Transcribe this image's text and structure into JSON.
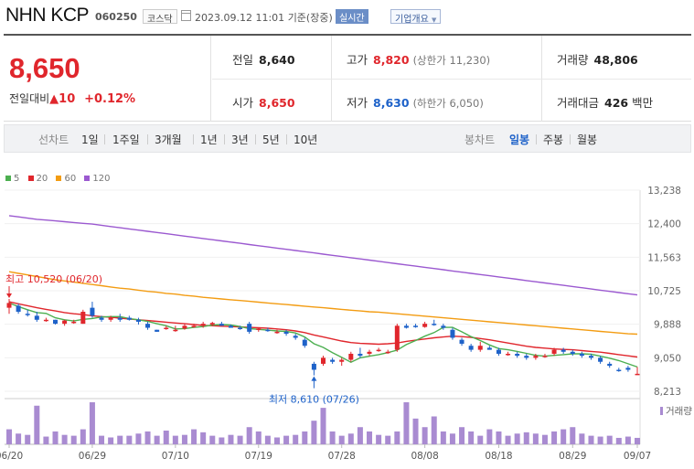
{
  "header": {
    "title": "NHN KCP",
    "code": "060250",
    "market": "코스닥",
    "timestamp": "2023.09.12 11:01",
    "basis": "기준(장중)",
    "realtime": "실시간",
    "company_overview": "기업개요",
    "dropdown_glyph": "▼"
  },
  "summary": {
    "price": "8,650",
    "change_label": "전일대비",
    "change_arrow": "▲",
    "change_value": "10",
    "change_pct": "+0.12%",
    "prev_close_label": "전일",
    "prev_close": "8,640",
    "high_label": "고가",
    "high": "8,820",
    "upper_limit": "(상한가 11,230)",
    "volume_label": "거래량",
    "volume": "48,806",
    "open_label": "시가",
    "open": "8,650",
    "low_label": "저가",
    "low": "8,630",
    "lower_limit": "(하한가 6,050)",
    "amount_label": "거래대금",
    "amount": "426",
    "amount_unit": "백만"
  },
  "toolbar": {
    "line_label": "선차트",
    "periods": [
      "1일",
      "1주일",
      "3개월",
      "1년",
      "3년",
      "5년",
      "10년"
    ],
    "candle_label": "봉차트",
    "candle_types": [
      "일봉",
      "주봉",
      "월봉"
    ],
    "selected_candle": "일봉"
  },
  "colors": {
    "up": "#e0262c",
    "down": "#1e62c9",
    "ma5": "#4caf50",
    "ma20": "#e0262c",
    "ma60": "#f39c12",
    "ma120": "#9b59d0",
    "volume": "#a98bd1"
  },
  "chart_data": {
    "type": "candlestick",
    "title": "NHN KCP 일봉",
    "legend": [
      {
        "name": "5",
        "color": "#4caf50"
      },
      {
        "name": "20",
        "color": "#e0262c"
      },
      {
        "name": "60",
        "color": "#f39c12"
      },
      {
        "name": "120",
        "color": "#9b59d0"
      }
    ],
    "ylim": [
      8213,
      13238
    ],
    "yticks": [
      "13,238",
      "12,400",
      "11,563",
      "10,725",
      "9,888",
      "9,050",
      "8,213"
    ],
    "xticks": [
      "06/20",
      "06/29",
      "07/10",
      "07/19",
      "07/28",
      "08/08",
      "08/18",
      "08/29",
      "09/07"
    ],
    "volume_label": "거래량",
    "annotations": {
      "high": "최고 10,520 (06/20)",
      "low": "최저 8,610 (07/26)"
    },
    "candles": [
      {
        "o": 10300,
        "h": 10520,
        "l": 10150,
        "c": 10420
      },
      {
        "o": 10350,
        "h": 10400,
        "l": 10150,
        "c": 10200
      },
      {
        "o": 10150,
        "h": 10250,
        "l": 10080,
        "c": 10120
      },
      {
        "o": 10100,
        "h": 10200,
        "l": 9950,
        "c": 10000
      },
      {
        "o": 10000,
        "h": 10050,
        "l": 9950,
        "c": 10000
      },
      {
        "o": 10000,
        "h": 10000,
        "l": 9880,
        "c": 9900
      },
      {
        "o": 9900,
        "h": 10000,
        "l": 9850,
        "c": 9980
      },
      {
        "o": 9950,
        "h": 10000,
        "l": 9900,
        "c": 9950
      },
      {
        "o": 9900,
        "h": 10250,
        "l": 9900,
        "c": 10200
      },
      {
        "o": 10300,
        "h": 10450,
        "l": 10050,
        "c": 10100
      },
      {
        "o": 10050,
        "h": 10100,
        "l": 9950,
        "c": 10000
      },
      {
        "o": 10000,
        "h": 10100,
        "l": 9950,
        "c": 10050
      },
      {
        "o": 10050,
        "h": 10150,
        "l": 9950,
        "c": 10000
      },
      {
        "o": 10050,
        "h": 10100,
        "l": 9980,
        "c": 10000
      },
      {
        "o": 10000,
        "h": 10050,
        "l": 9880,
        "c": 9950
      },
      {
        "o": 9900,
        "h": 9950,
        "l": 9750,
        "c": 9800
      },
      {
        "o": 9750,
        "h": 9750,
        "l": 9700,
        "c": 9700
      },
      {
        "o": 9800,
        "h": 9850,
        "l": 9750,
        "c": 9800
      },
      {
        "o": 9750,
        "h": 9850,
        "l": 9700,
        "c": 9750
      },
      {
        "o": 9780,
        "h": 9900,
        "l": 9750,
        "c": 9850
      },
      {
        "o": 9850,
        "h": 9900,
        "l": 9800,
        "c": 9850
      },
      {
        "o": 9850,
        "h": 9950,
        "l": 9800,
        "c": 9900
      },
      {
        "o": 9880,
        "h": 9950,
        "l": 9850,
        "c": 9920
      },
      {
        "o": 9900,
        "h": 9950,
        "l": 9850,
        "c": 9850
      },
      {
        "o": 9850,
        "h": 9880,
        "l": 9800,
        "c": 9800
      },
      {
        "o": 9800,
        "h": 9850,
        "l": 9750,
        "c": 9780
      },
      {
        "o": 9900,
        "h": 9950,
        "l": 9650,
        "c": 9700
      },
      {
        "o": 9750,
        "h": 9800,
        "l": 9700,
        "c": 9780
      },
      {
        "o": 9750,
        "h": 9800,
        "l": 9700,
        "c": 9730
      },
      {
        "o": 9700,
        "h": 9750,
        "l": 9650,
        "c": 9700
      },
      {
        "o": 9700,
        "h": 9750,
        "l": 9600,
        "c": 9650
      },
      {
        "o": 9600,
        "h": 9650,
        "l": 9500,
        "c": 9550
      },
      {
        "o": 9500,
        "h": 9550,
        "l": 9300,
        "c": 9350
      },
      {
        "o": 8900,
        "h": 8950,
        "l": 8610,
        "c": 8750
      },
      {
        "o": 8900,
        "h": 9100,
        "l": 8850,
        "c": 9050
      },
      {
        "o": 9000,
        "h": 9050,
        "l": 8900,
        "c": 8950
      },
      {
        "o": 8950,
        "h": 9050,
        "l": 8850,
        "c": 9000
      },
      {
        "o": 9000,
        "h": 9200,
        "l": 8950,
        "c": 9150
      },
      {
        "o": 9150,
        "h": 9300,
        "l": 9050,
        "c": 9100
      },
      {
        "o": 9150,
        "h": 9250,
        "l": 9100,
        "c": 9200
      },
      {
        "o": 9250,
        "h": 9300,
        "l": 9200,
        "c": 9250
      },
      {
        "o": 9200,
        "h": 9250,
        "l": 9150,
        "c": 9200
      },
      {
        "o": 9250,
        "h": 9900,
        "l": 9200,
        "c": 9850
      },
      {
        "o": 9850,
        "h": 9900,
        "l": 9780,
        "c": 9800
      },
      {
        "o": 9850,
        "h": 9900,
        "l": 9800,
        "c": 9820
      },
      {
        "o": 9820,
        "h": 9950,
        "l": 9800,
        "c": 9900
      },
      {
        "o": 9900,
        "h": 10000,
        "l": 9850,
        "c": 9880
      },
      {
        "o": 9850,
        "h": 9900,
        "l": 9750,
        "c": 9800
      },
      {
        "o": 9750,
        "h": 9800,
        "l": 9500,
        "c": 9550
      },
      {
        "o": 9500,
        "h": 9550,
        "l": 9350,
        "c": 9400
      },
      {
        "o": 9350,
        "h": 9400,
        "l": 9200,
        "c": 9250
      },
      {
        "o": 9250,
        "h": 9450,
        "l": 9200,
        "c": 9350
      },
      {
        "o": 9300,
        "h": 9350,
        "l": 9250,
        "c": 9250
      },
      {
        "o": 9250,
        "h": 9300,
        "l": 9100,
        "c": 9150
      },
      {
        "o": 9150,
        "h": 9200,
        "l": 9100,
        "c": 9150
      },
      {
        "o": 9150,
        "h": 9200,
        "l": 9050,
        "c": 9100
      },
      {
        "o": 9100,
        "h": 9150,
        "l": 9000,
        "c": 9050
      },
      {
        "o": 9050,
        "h": 9150,
        "l": 9000,
        "c": 9100
      },
      {
        "o": 9100,
        "h": 9150,
        "l": 9050,
        "c": 9100
      },
      {
        "o": 9150,
        "h": 9300,
        "l": 9100,
        "c": 9250
      },
      {
        "o": 9250,
        "h": 9300,
        "l": 9150,
        "c": 9200
      },
      {
        "o": 9200,
        "h": 9250,
        "l": 9100,
        "c": 9150
      },
      {
        "o": 9150,
        "h": 9200,
        "l": 9050,
        "c": 9100
      },
      {
        "o": 9100,
        "h": 9150,
        "l": 9000,
        "c": 9050
      },
      {
        "o": 9050,
        "h": 9100,
        "l": 8900,
        "c": 8950
      },
      {
        "o": 8900,
        "h": 8950,
        "l": 8800,
        "c": 8850
      },
      {
        "o": 8750,
        "h": 8800,
        "l": 8700,
        "c": 8720
      },
      {
        "o": 8800,
        "h": 8850,
        "l": 8700,
        "c": 8750
      },
      {
        "o": 8650,
        "h": 8820,
        "l": 8630,
        "c": 8650
      }
    ],
    "volume": [
      35,
      25,
      22,
      90,
      18,
      30,
      22,
      20,
      35,
      98,
      20,
      16,
      20,
      20,
      25,
      30,
      20,
      32,
      20,
      22,
      35,
      28,
      20,
      16,
      22,
      20,
      40,
      30,
      20,
      16,
      20,
      22,
      30,
      55,
      85,
      30,
      20,
      25,
      40,
      30,
      22,
      20,
      30,
      98,
      60,
      40,
      65,
      30,
      25,
      40,
      30,
      20,
      35,
      30,
      20,
      25,
      28,
      25,
      22,
      30,
      35,
      40,
      25,
      20,
      18,
      20,
      15,
      18,
      15
    ],
    "ma5": [
      10420,
      10330,
      10250,
      10180,
      10160,
      10050,
      10000,
      9970,
      10010,
      10030,
      10070,
      10080,
      10080,
      10030,
      10000,
      9960,
      9900,
      9850,
      9770,
      9780,
      9810,
      9830,
      9870,
      9880,
      9870,
      9830,
      9780,
      9760,
      9740,
      9720,
      9710,
      9670,
      9570,
      9400,
      9310,
      9180,
      9060,
      8940,
      9050,
      9090,
      9130,
      9180,
      9240,
      9380,
      9480,
      9590,
      9680,
      9810,
      9810,
      9700,
      9580,
      9480,
      9370,
      9280,
      9250,
      9210,
      9160,
      9110,
      9090,
      9110,
      9130,
      9150,
      9150,
      9140,
      9090,
      9040,
      8980,
      8900,
      8820
    ],
    "ma20": [
      10450,
      10400,
      10350,
      10300,
      10260,
      10220,
      10180,
      10150,
      10130,
      10100,
      10080,
      10060,
      10040,
      10020,
      10000,
      9980,
      9960,
      9940,
      9920,
      9900,
      9880,
      9860,
      9850,
      9840,
      9830,
      9820,
      9810,
      9800,
      9790,
      9770,
      9750,
      9720,
      9680,
      9620,
      9570,
      9520,
      9470,
      9430,
      9410,
      9400,
      9390,
      9400,
      9420,
      9460,
      9490,
      9520,
      9550,
      9570,
      9590,
      9580,
      9560,
      9530,
      9500,
      9460,
      9420,
      9380,
      9340,
      9310,
      9290,
      9270,
      9260,
      9250,
      9230,
      9210,
      9190,
      9160,
      9130,
      9100,
      9070
    ],
    "ma60": [
      11200,
      11160,
      11120,
      11080,
      11040,
      11000,
      10970,
      10940,
      10910,
      10880,
      10850,
      10820,
      10790,
      10770,
      10740,
      10710,
      10690,
      10660,
      10640,
      10610,
      10590,
      10560,
      10540,
      10520,
      10500,
      10480,
      10460,
      10440,
      10420,
      10400,
      10380,
      10360,
      10340,
      10320,
      10300,
      10280,
      10260,
      10240,
      10220,
      10200,
      10190,
      10170,
      10150,
      10130,
      10110,
      10090,
      10070,
      10050,
      10030,
      10010,
      9990,
      9970,
      9950,
      9930,
      9910,
      9890,
      9870,
      9850,
      9830,
      9810,
      9790,
      9770,
      9750,
      9730,
      9710,
      9690,
      9670,
      9650,
      9640
    ],
    "ma120": [
      12600,
      12570,
      12540,
      12510,
      12490,
      12470,
      12450,
      12430,
      12410,
      12390,
      12360,
      12330,
      12300,
      12270,
      12240,
      12210,
      12180,
      12150,
      12120,
      12090,
      12060,
      12030,
      12000,
      11970,
      11940,
      11910,
      11880,
      11850,
      11820,
      11790,
      11760,
      11730,
      11700,
      11670,
      11640,
      11610,
      11580,
      11550,
      11520,
      11490,
      11460,
      11430,
      11400,
      11370,
      11340,
      11310,
      11280,
      11250,
      11220,
      11190,
      11160,
      11130,
      11100,
      11070,
      11040,
      11010,
      10980,
      10950,
      10920,
      10890,
      10860,
      10830,
      10800,
      10770,
      10740,
      10710,
      10680,
      10650,
      10620
    ]
  }
}
